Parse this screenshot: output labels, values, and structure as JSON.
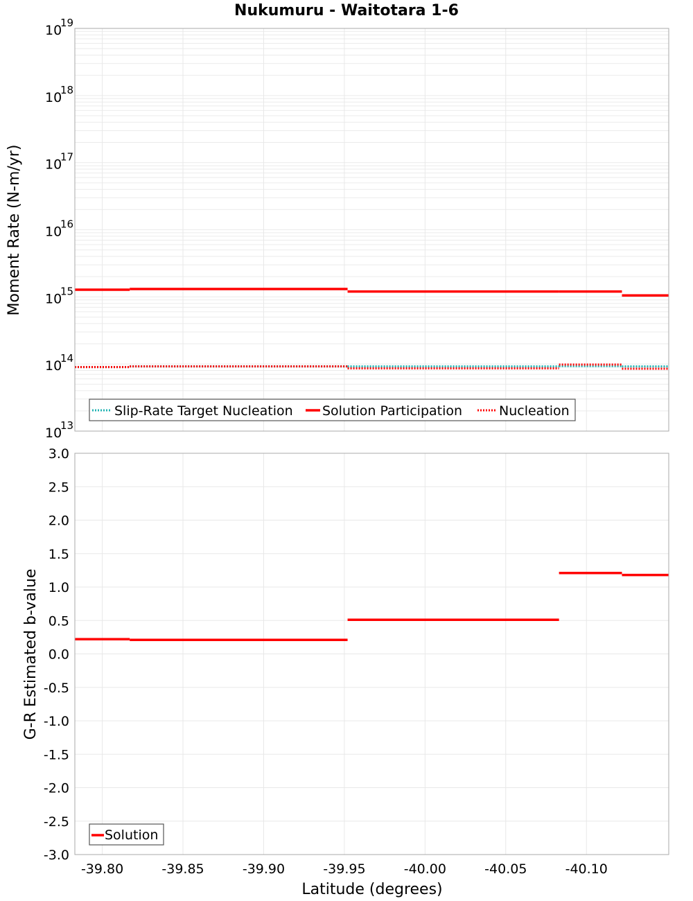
{
  "title": "Nukumuru - Waitotara 1-6",
  "colors": {
    "solution": "#ff0000",
    "nucleation": "#ff0000",
    "target": "#1fb3b3",
    "grid": "#e8e8e8",
    "frame": "#aaaaaa"
  },
  "chart_data": [
    {
      "type": "line",
      "title": "Nukumuru - Waitotara 1-6",
      "xlabel": "Latitude (degrees)",
      "ylabel": "Moment Rate (N-m/yr)",
      "yscale": "log",
      "ylim": [
        10000000000000.0,
        1e+19
      ],
      "xlim": [
        -39.783,
        -40.151
      ],
      "x_reversed": true,
      "grid": true,
      "legend_position": "bottom-left",
      "ytick_labels": [
        "10^13",
        "10^14",
        "10^15",
        "10^16",
        "10^17",
        "10^18",
        "10^19"
      ],
      "xtick_labels": [
        "-39.80",
        "-39.85",
        "-39.90",
        "-39.95",
        "-40.00",
        "-40.05",
        "-40.10"
      ],
      "segments_x": [
        [
          -39.783,
          -39.817
        ],
        [
          -39.817,
          -39.952
        ],
        [
          -39.952,
          -40.083
        ],
        [
          -40.083,
          -40.122
        ],
        [
          -40.122,
          -40.151
        ]
      ],
      "series": [
        {
          "name": "Slip-Rate Target Nucleation",
          "style": "dotted",
          "color": "#1fb3b3",
          "values": [
            90000000000000.0,
            92000000000000.0,
            92000000000000.0,
            93000000000000.0,
            92000000000000.0
          ]
        },
        {
          "name": "Solution Participation",
          "style": "solid",
          "color": "#ff0000",
          "values": [
            1280000000000000.0,
            1310000000000000.0,
            1200000000000000.0,
            1200000000000000.0,
            1050000000000000.0
          ]
        },
        {
          "name": "Nucleation",
          "style": "dotted",
          "color": "#ff0000",
          "values": [
            90000000000000.0,
            92000000000000.0,
            86000000000000.0,
            98000000000000.0,
            85000000000000.0
          ]
        }
      ]
    },
    {
      "type": "line",
      "xlabel": "Latitude (degrees)",
      "ylabel": "G-R Estimated b-value",
      "ylim": [
        -3.0,
        3.0
      ],
      "xlim": [
        -39.783,
        -40.151
      ],
      "x_reversed": true,
      "grid": true,
      "legend_position": "bottom-left",
      "ytick_labels": [
        "3.0",
        "2.5",
        "2.0",
        "1.5",
        "1.0",
        "0.5",
        "0.0",
        "-0.5",
        "-1.0",
        "-1.5",
        "-2.0",
        "-2.5",
        "-3.0"
      ],
      "xtick_labels": [
        "-39.80",
        "-39.85",
        "-39.90",
        "-39.95",
        "-40.00",
        "-40.05",
        "-40.10"
      ],
      "segments_x": [
        [
          -39.783,
          -39.817
        ],
        [
          -39.817,
          -39.952
        ],
        [
          -39.952,
          -40.083
        ],
        [
          -40.083,
          -40.122
        ],
        [
          -40.122,
          -40.151
        ]
      ],
      "series": [
        {
          "name": "Solution",
          "style": "solid",
          "color": "#ff0000",
          "values": [
            0.22,
            0.21,
            0.51,
            1.21,
            1.18
          ]
        }
      ]
    }
  ],
  "top_plot": {
    "ylabel": "Moment Rate (N-m/yr)",
    "yticks": [
      {
        "base": "10",
        "exp": "19"
      },
      {
        "base": "10",
        "exp": "18"
      },
      {
        "base": "10",
        "exp": "17"
      },
      {
        "base": "10",
        "exp": "16"
      },
      {
        "base": "10",
        "exp": "15"
      },
      {
        "base": "10",
        "exp": "14"
      },
      {
        "base": "10",
        "exp": "13"
      }
    ],
    "legend": [
      "Slip-Rate Target Nucleation",
      "Solution Participation",
      "Nucleation"
    ]
  },
  "bottom_plot": {
    "ylabel": "G-R Estimated b-value",
    "yticks": [
      "3.0",
      "2.5",
      "2.0",
      "1.5",
      "1.0",
      "0.5",
      "0.0",
      "-0.5",
      "-1.0",
      "-1.5",
      "-2.0",
      "-2.5",
      "-3.0"
    ],
    "legend": [
      "Solution"
    ],
    "xticks": [
      "-39.80",
      "-39.85",
      "-39.90",
      "-39.95",
      "-40.00",
      "-40.05",
      "-40.10"
    ],
    "xlabel": "Latitude (degrees)"
  }
}
